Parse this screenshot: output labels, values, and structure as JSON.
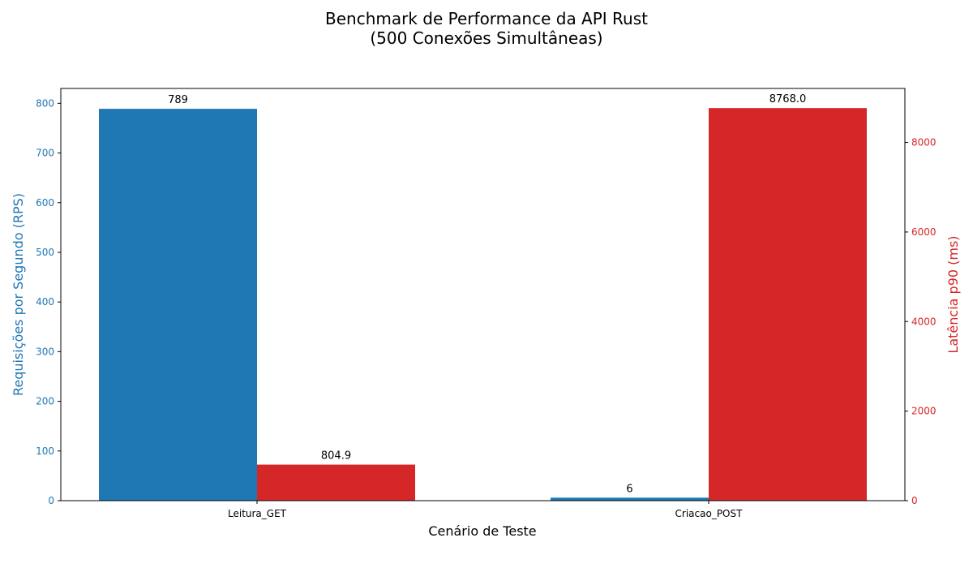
{
  "chart_data": {
    "type": "bar",
    "title_lines": [
      "Benchmark de Performance da API Rust",
      "(500 Conexões Simultâneas)"
    ],
    "xlabel": "Cenário de Teste",
    "categories": [
      "Leitura_GET",
      "Criacao_POST"
    ],
    "y_left": {
      "label": "Requisições por Segundo (RPS)",
      "color": "#1f77b4",
      "ylim": [
        0,
        830
      ],
      "ticks": [
        0,
        100,
        200,
        300,
        400,
        500,
        600,
        700,
        800
      ]
    },
    "y_right": {
      "label": "Latência p90 (ms)",
      "color": "#d62728",
      "ylim": [
        0,
        9206
      ],
      "ticks": [
        0,
        2000,
        4000,
        6000,
        8000
      ]
    },
    "series": [
      {
        "axis": "left",
        "color": "#1f77b4",
        "values": [
          789,
          6
        ],
        "labels": [
          "789",
          "6"
        ]
      },
      {
        "axis": "right",
        "color": "#d62728",
        "values": [
          804.9,
          8768.0
        ],
        "labels": [
          "804.9",
          "8768.0"
        ]
      }
    ],
    "grid": false,
    "legend": "none"
  }
}
